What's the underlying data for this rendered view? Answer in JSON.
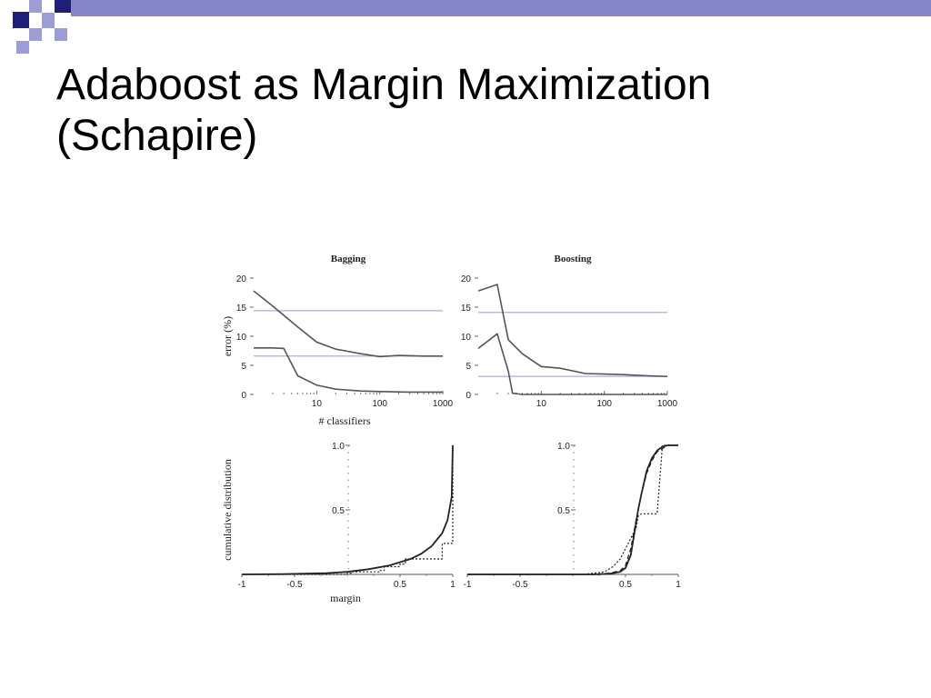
{
  "slide": {
    "title_line1": "Adaboost as Margin Maximization",
    "title_line2": "(Schapire)"
  },
  "colors": {
    "decoration_navy": "#1f1f7a",
    "decoration_light": "#9c9cd6",
    "decoration_bar": "#8585c8",
    "reference_line": "#a9b0dc",
    "curve": "#555555"
  },
  "chart_data": [
    {
      "id": "bagging-error",
      "type": "line",
      "title": "Bagging",
      "xlabel": "# classifiers",
      "ylabel": "error (%)",
      "xscale": "log",
      "xlim": [
        1,
        1000
      ],
      "ylim": [
        0,
        20
      ],
      "xticks": [
        10,
        100,
        1000
      ],
      "yticks": [
        0,
        5,
        10,
        15,
        20
      ],
      "reference_lines": [
        14.4,
        6.6
      ],
      "series": [
        {
          "role": "test",
          "x": [
            1,
            2,
            5,
            10,
            20,
            50,
            100,
            200,
            500,
            1000
          ],
          "y": [
            17.8,
            15.2,
            11.6,
            9.0,
            7.8,
            7.0,
            6.5,
            6.7,
            6.6,
            6.6
          ]
        },
        {
          "role": "train",
          "x": [
            1,
            2,
            3,
            5,
            10,
            20,
            50,
            100,
            300,
            1000
          ],
          "y": [
            8.0,
            8.0,
            7.9,
            3.2,
            1.6,
            0.9,
            0.6,
            0.5,
            0.4,
            0.4
          ]
        }
      ]
    },
    {
      "id": "boosting-error",
      "type": "line",
      "title": "Boosting",
      "xlabel": "",
      "ylabel": "",
      "xscale": "log",
      "xlim": [
        1,
        1000
      ],
      "ylim": [
        0,
        20
      ],
      "xticks": [
        10,
        100,
        1000
      ],
      "yticks": [
        0,
        5,
        10,
        15,
        20
      ],
      "reference_lines": [
        14.1,
        3.1
      ],
      "series": [
        {
          "role": "test",
          "x": [
            1,
            2,
            3,
            5,
            10,
            20,
            50,
            100,
            200,
            500,
            1000
          ],
          "y": [
            17.8,
            18.9,
            9.4,
            7.0,
            4.8,
            4.5,
            3.6,
            3.5,
            3.4,
            3.2,
            3.1
          ]
        },
        {
          "role": "train",
          "x": [
            1,
            2,
            3,
            3.5,
            5,
            10,
            100,
            1000
          ],
          "y": [
            7.9,
            10.4,
            4.0,
            0.2,
            0,
            0,
            0,
            0
          ]
        }
      ]
    },
    {
      "id": "bagging-margin",
      "type": "line",
      "title": "",
      "xlabel": "margin",
      "ylabel": "cumulative distribution",
      "xlim": [
        -1,
        1
      ],
      "ylim": [
        0,
        1
      ],
      "xticks": [
        -1,
        -0.5,
        0.5,
        1
      ],
      "yticks": [
        0.5,
        1.0
      ],
      "series": [
        {
          "style": "solid",
          "x": [
            -1,
            -0.6,
            -0.2,
            0,
            0.2,
            0.4,
            0.6,
            0.7,
            0.8,
            0.9,
            0.95,
            0.99,
            1
          ],
          "y": [
            0,
            0.002,
            0.01,
            0.02,
            0.04,
            0.07,
            0.12,
            0.16,
            0.22,
            0.32,
            0.42,
            0.6,
            1.0
          ]
        },
        {
          "style": "dotted",
          "x": [
            -1,
            0,
            0.05,
            0.3,
            0.35,
            0.5,
            0.55,
            0.9,
            1,
            1
          ],
          "y": [
            0,
            0.01,
            0.02,
            0.03,
            0.06,
            0.08,
            0.12,
            0.24,
            0.5,
            1.0
          ]
        }
      ]
    },
    {
      "id": "boosting-margin",
      "type": "line",
      "title": "",
      "xlabel": "",
      "ylabel": "",
      "xlim": [
        -1,
        1
      ],
      "ylim": [
        0,
        1
      ],
      "xticks": [
        -1,
        -0.5,
        0.5,
        1
      ],
      "yticks": [
        0.5,
        1.0
      ],
      "series": [
        {
          "style": "solid",
          "x": [
            -1,
            0.2,
            0.35,
            0.45,
            0.5,
            0.55,
            0.58,
            0.62,
            0.65,
            0.7,
            0.75,
            0.8,
            0.85,
            0.9,
            1
          ],
          "y": [
            0,
            0,
            0.005,
            0.02,
            0.05,
            0.15,
            0.3,
            0.5,
            0.62,
            0.8,
            0.9,
            0.96,
            0.99,
            1.0,
            1.0
          ]
        },
        {
          "style": "dashed",
          "x": [
            -1,
            0.2,
            0.35,
            0.45,
            0.5,
            0.55,
            0.6,
            0.65,
            0.7,
            0.75,
            0.8,
            0.9,
            1
          ],
          "y": [
            0,
            0,
            0.01,
            0.03,
            0.07,
            0.2,
            0.42,
            0.62,
            0.78,
            0.88,
            0.95,
            1.0,
            1.0
          ]
        },
        {
          "style": "dotted",
          "x": [
            -1,
            0.1,
            0.3,
            0.38,
            0.45,
            0.5,
            0.55,
            0.6,
            0.62,
            0.65,
            0.8,
            0.85,
            1
          ],
          "y": [
            0,
            0,
            0.02,
            0.06,
            0.12,
            0.2,
            0.28,
            0.36,
            0.45,
            0.47,
            0.47,
            1.0,
            1.0
          ]
        }
      ]
    }
  ]
}
